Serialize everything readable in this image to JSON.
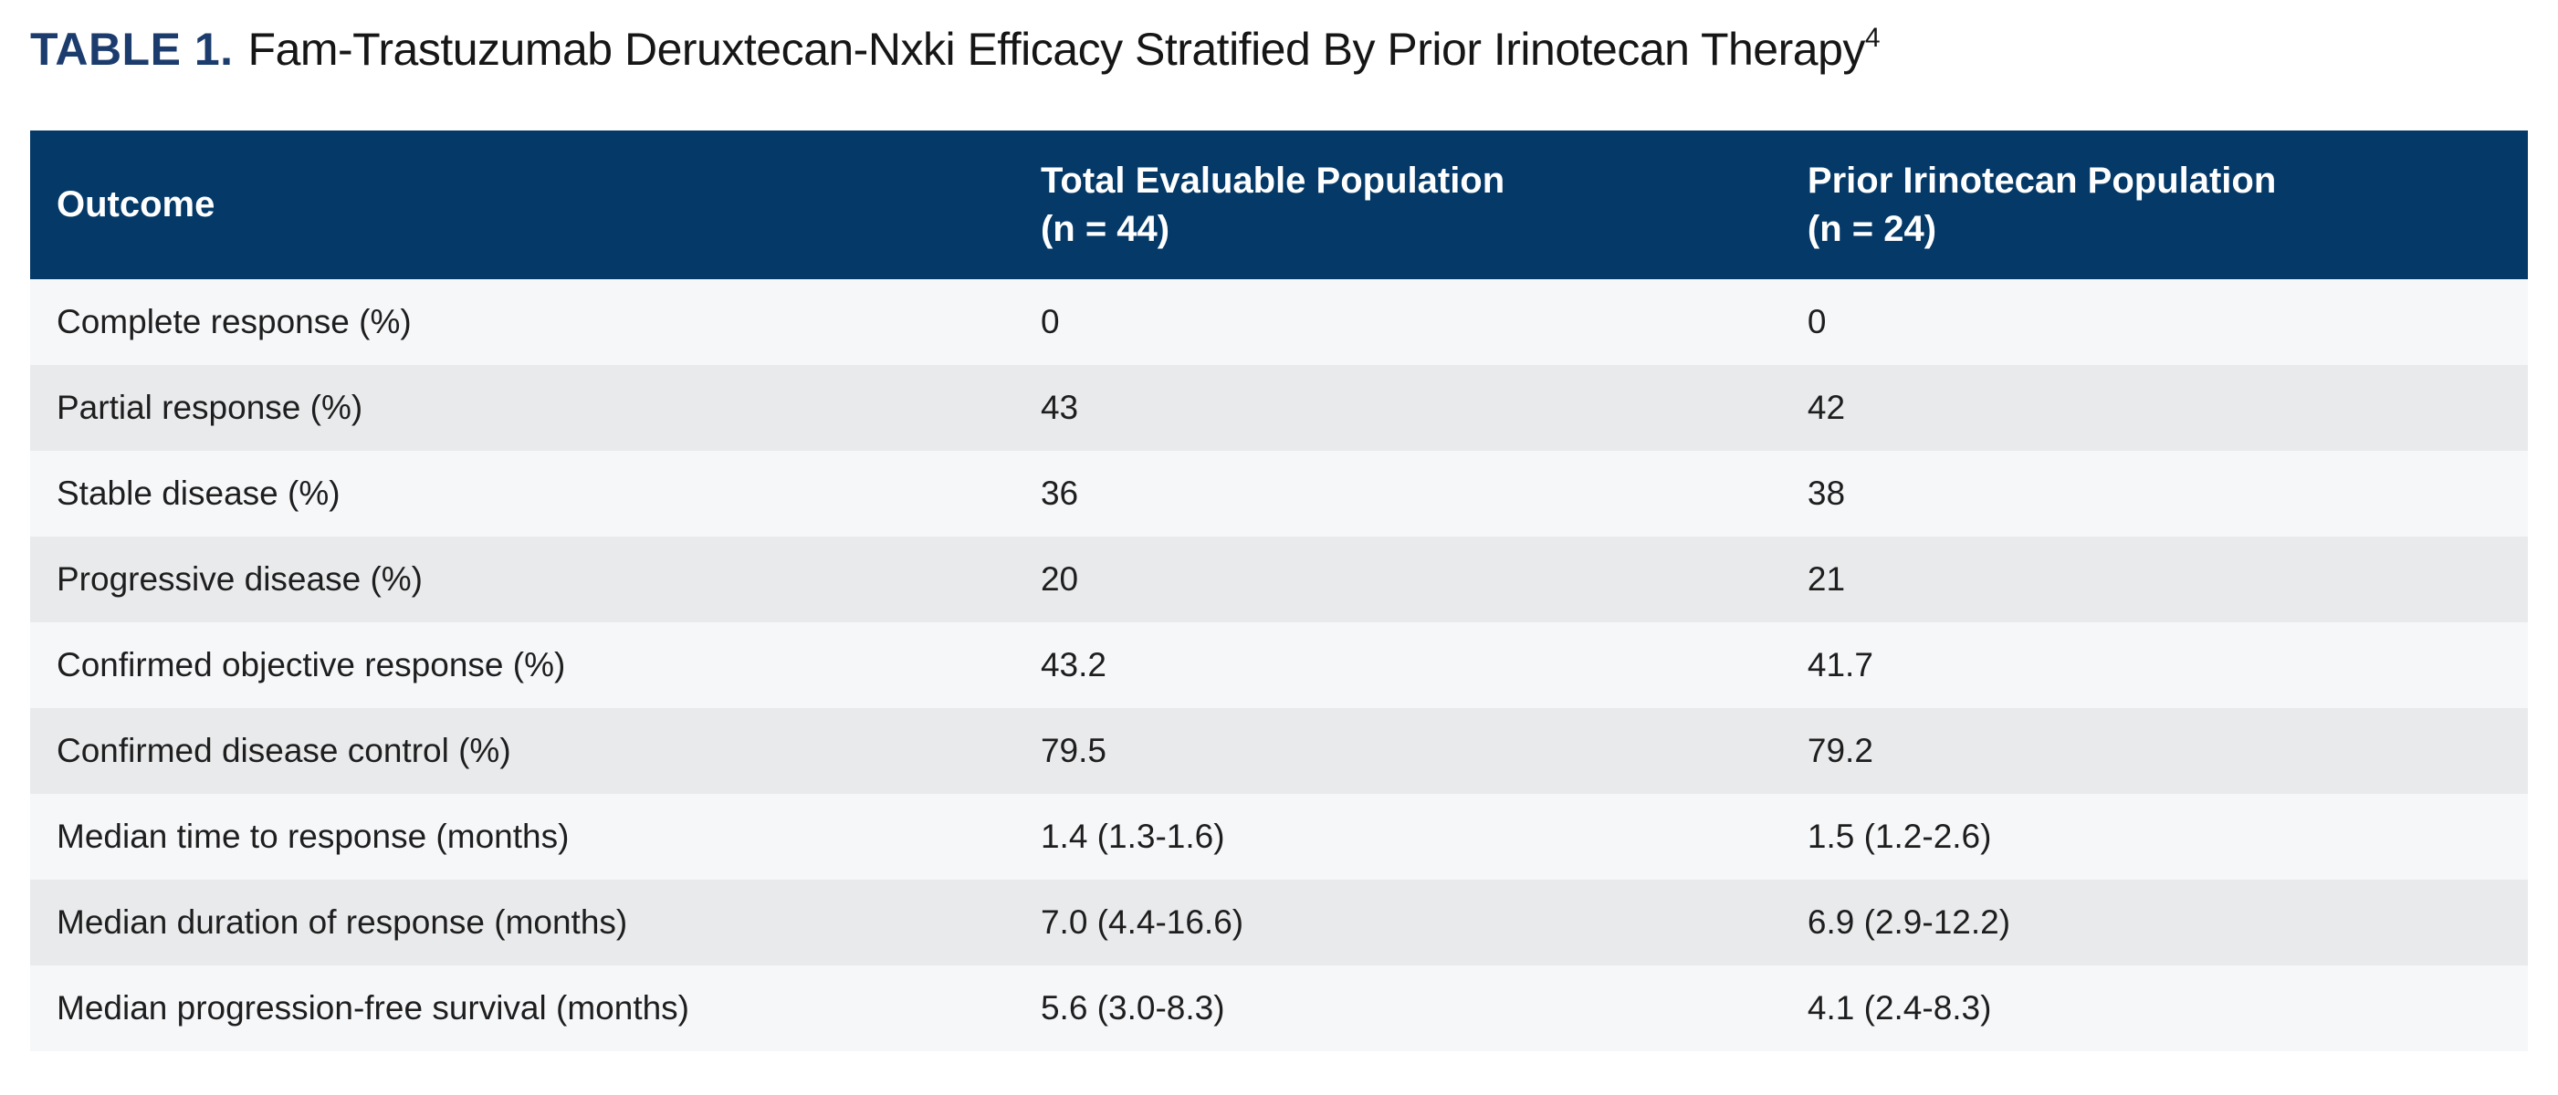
{
  "title": {
    "label": "TABLE 1.",
    "text": "Fam-Trastuzumab Deruxtecan-Nxki Efficacy Stratified By Prior Irinotecan Therapy",
    "reference": "4"
  },
  "table": {
    "columns": [
      {
        "line1": "Outcome",
        "line2": ""
      },
      {
        "line1": "Total Evaluable Population",
        "line2": "(n = 44)"
      },
      {
        "line1": "Prior Irinotecan Population",
        "line2": "(n = 24)"
      }
    ],
    "rows": [
      {
        "outcome": "Complete response (%)",
        "total": "0",
        "prior": "0"
      },
      {
        "outcome": "Partial response (%)",
        "total": "43",
        "prior": "42"
      },
      {
        "outcome": "Stable disease (%)",
        "total": "36",
        "prior": "38"
      },
      {
        "outcome": "Progressive disease (%)",
        "total": "20",
        "prior": "21"
      },
      {
        "outcome": "Confirmed objective response (%)",
        "total": "43.2",
        "prior": "41.7"
      },
      {
        "outcome": "Confirmed disease control (%)",
        "total": "79.5",
        "prior": "79.2"
      },
      {
        "outcome": "Median time to response (months)",
        "total": "1.4 (1.3-1.6)",
        "prior": "1.5 (1.2-2.6)"
      },
      {
        "outcome": "Median duration of response (months)",
        "total": "7.0 (4.4-16.6)",
        "prior": "6.9 (2.9-12.2)"
      },
      {
        "outcome": "Median progression-free survival (months)",
        "total": "5.6 (3.0-8.3)",
        "prior": "4.1 (2.4-8.3)"
      }
    ]
  },
  "colors": {
    "header_bg": "#043968",
    "title_accent": "#1c3c6e",
    "row_odd": "#f6f7f9",
    "row_even": "#e9eaeb",
    "header_text": "#ffffff",
    "body_text": "#1e1e1e"
  }
}
